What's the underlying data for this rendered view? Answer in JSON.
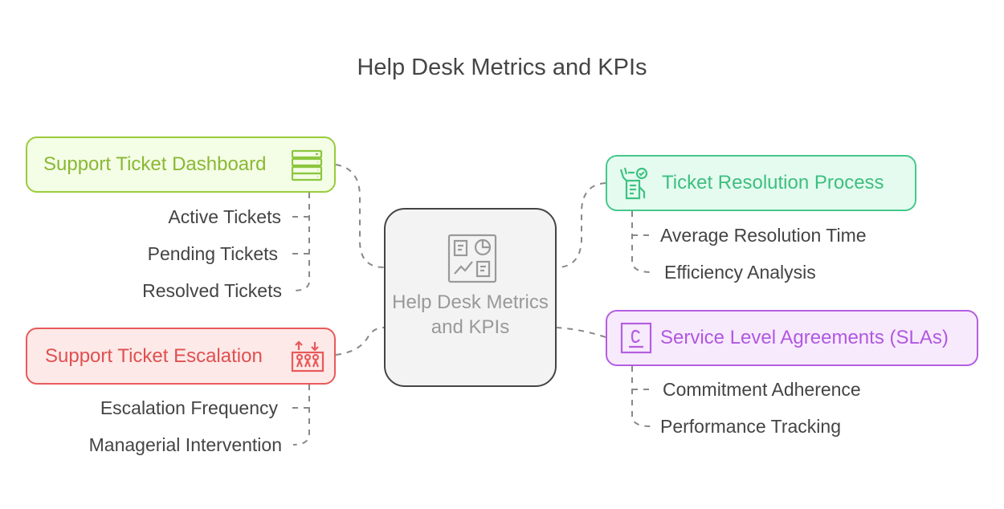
{
  "title": "Help Desk Metrics and KPIs",
  "center": {
    "label": "Help Desk Metrics and KPIs",
    "icon": "dashboard-icon",
    "color": "#444444"
  },
  "branches": [
    {
      "label": "Support Ticket Dashboard",
      "icon": "server-list-icon",
      "color": "#8dc63f",
      "fill": "#f4fde6",
      "items": [
        "Active Tickets",
        "Pending Tickets",
        "Resolved Tickets"
      ]
    },
    {
      "label": "Support Ticket Escalation",
      "icon": "escalation-people-icon",
      "color": "#e85a5a",
      "fill": "#fde9e8",
      "items": [
        "Escalation Frequency",
        "Managerial Intervention"
      ]
    },
    {
      "label": "Ticket Resolution Process",
      "icon": "hand-checklist-icon",
      "color": "#3ec282",
      "fill": "#e5fbf0",
      "items": [
        "Average Resolution Time",
        "Efficiency Analysis"
      ]
    },
    {
      "label": "Service Level Agreements (SLAs)",
      "icon": "contract-c-icon",
      "color": "#b45ee0",
      "fill": "#f8eafd",
      "items": [
        "Commitment Adherence",
        "Performance Tracking"
      ]
    }
  ]
}
